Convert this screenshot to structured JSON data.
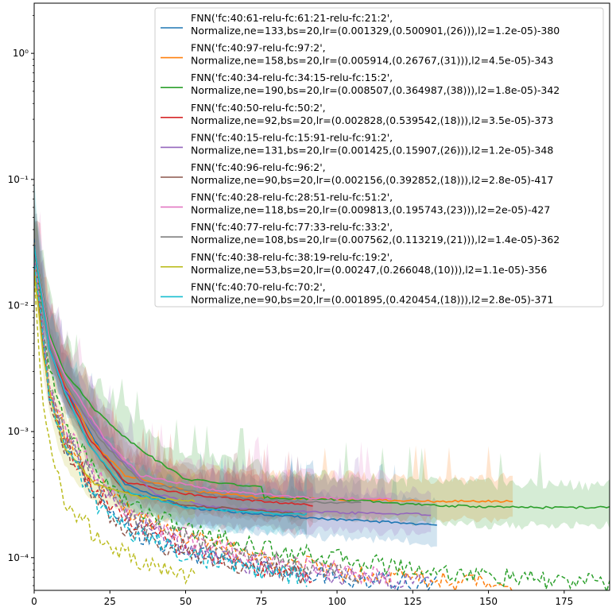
{
  "chart_data": {
    "type": "line",
    "title": "",
    "xlabel": "",
    "ylabel": "",
    "xlim": [
      0,
      190
    ],
    "ylim": [
      5.5e-05,
      2.5
    ],
    "yscale": "log",
    "grid": false,
    "legend_position": "top-right",
    "x_ticks": [
      0,
      25,
      50,
      75,
      100,
      125,
      150,
      175
    ],
    "y_ticks": [
      0.0001,
      0.001,
      0.01,
      0.1,
      1
    ],
    "x_tick_labels": [
      "0",
      "25",
      "50",
      "75",
      "100",
      "125",
      "150",
      "175"
    ],
    "y_tick_labels": [
      "10⁻⁴",
      "10⁻³",
      "10⁻²",
      "10⁻¹",
      "10⁰"
    ],
    "series": [
      {
        "name_line1": "FNN('fc:40:61-relu-fc:61:21-relu-fc:21:2',",
        "name_line2": "Normalize,ne=133,bs=20,lr=(0.001329,(0.500901,(26))),l2=1.2e-05)-380",
        "color": "#1f77b4",
        "epochs": 133,
        "validation": [
          [
            0,
            0.03
          ],
          [
            5,
            0.0045
          ],
          [
            10,
            0.0022
          ],
          [
            20,
            0.00085
          ],
          [
            30,
            0.00038
          ],
          [
            50,
            0.00025
          ],
          [
            75,
            0.00022
          ],
          [
            100,
            0.0002
          ],
          [
            120,
            0.00019
          ],
          [
            133,
            0.00018
          ]
        ],
        "train": [
          [
            0,
            0.03
          ],
          [
            5,
            0.002
          ],
          [
            10,
            0.0008
          ],
          [
            20,
            0.0003
          ],
          [
            30,
            0.00017
          ],
          [
            50,
            0.00011
          ],
          [
            75,
            8.5e-05
          ],
          [
            100,
            7e-05
          ],
          [
            133,
            6.2e-05
          ]
        ]
      },
      {
        "name_line1": "FNN('fc:40:97-relu-fc:97:2',",
        "name_line2": "Normalize,ne=158,bs=20,lr=(0.005914,(0.26767,(31))),l2=4.5e-05)-343",
        "color": "#ff7f0e",
        "epochs": 158,
        "validation": [
          [
            0,
            0.025
          ],
          [
            5,
            0.005
          ],
          [
            10,
            0.0025
          ],
          [
            20,
            0.0008
          ],
          [
            30,
            0.00045
          ],
          [
            50,
            0.00034
          ],
          [
            75,
            0.0003
          ],
          [
            100,
            0.00029
          ],
          [
            130,
            0.00028
          ],
          [
            158,
            0.00028
          ]
        ],
        "train": [
          [
            0,
            0.02
          ],
          [
            5,
            0.0025
          ],
          [
            10,
            0.001
          ],
          [
            20,
            0.0004
          ],
          [
            30,
            0.00025
          ],
          [
            50,
            0.00015
          ],
          [
            75,
            0.0001
          ],
          [
            100,
            8e-05
          ],
          [
            130,
            6.8e-05
          ],
          [
            158,
            6.2e-05
          ]
        ]
      },
      {
        "name_line1": "FNN('fc:40:34-relu-fc:34:15-relu-fc:15:2',",
        "name_line2": "Normalize,ne=190,bs=20,lr=(0.008507,(0.364987,(38))),l2=1.8e-05)-342",
        "color": "#2ca02c",
        "epochs": 190,
        "validation": [
          [
            0,
            0.03
          ],
          [
            5,
            0.006
          ],
          [
            10,
            0.003
          ],
          [
            20,
            0.0015
          ],
          [
            30,
            0.0009
          ],
          [
            40,
            0.0006
          ],
          [
            50,
            0.00042
          ],
          [
            75,
            0.00036
          ],
          [
            76,
            0.0003
          ],
          [
            100,
            0.00029
          ],
          [
            130,
            0.00026
          ],
          [
            160,
            0.00025
          ],
          [
            190,
            0.00025
          ]
        ],
        "train": [
          [
            0,
            0.025
          ],
          [
            5,
            0.003
          ],
          [
            10,
            0.0012
          ],
          [
            20,
            0.0005
          ],
          [
            30,
            0.00028
          ],
          [
            50,
            0.00017
          ],
          [
            75,
            0.00012
          ],
          [
            100,
            0.0001
          ],
          [
            130,
            8e-05
          ],
          [
            160,
            6.8e-05
          ],
          [
            190,
            6.3e-05
          ]
        ]
      },
      {
        "name_line1": "FNN('fc:40:50-relu-fc:50:2',",
        "name_line2": "Normalize,ne=92,bs=20,lr=(0.002828,(0.539542,(18))),l2=3.5e-05)-373",
        "color": "#d62728",
        "epochs": 92,
        "validation": [
          [
            0,
            0.028
          ],
          [
            5,
            0.005
          ],
          [
            10,
            0.0023
          ],
          [
            18,
            0.0009
          ],
          [
            30,
            0.0004
          ],
          [
            50,
            0.00032
          ],
          [
            75,
            0.00028
          ],
          [
            92,
            0.00026
          ]
        ],
        "train": [
          [
            0,
            0.02
          ],
          [
            5,
            0.0022
          ],
          [
            10,
            0.0009
          ],
          [
            18,
            0.0004
          ],
          [
            30,
            0.0002
          ],
          [
            50,
            0.00012
          ],
          [
            75,
            8.5e-05
          ],
          [
            92,
            7.2e-05
          ]
        ]
      },
      {
        "name_line1": "FNN('fc:40:15-relu-fc:15:91-relu-fc:91:2',",
        "name_line2": "Normalize,ne=131,bs=20,lr=(0.001425,(0.15907,(26))),l2=1.2e-05)-348",
        "color": "#9467bd",
        "epochs": 131,
        "validation": [
          [
            0,
            0.03
          ],
          [
            5,
            0.0048
          ],
          [
            10,
            0.0022
          ],
          [
            26,
            0.0007
          ],
          [
            40,
            0.00032
          ],
          [
            60,
            0.00025
          ],
          [
            90,
            0.00023
          ],
          [
            131,
            0.00022
          ]
        ],
        "train": [
          [
            0,
            0.025
          ],
          [
            5,
            0.0021
          ],
          [
            10,
            0.0009
          ],
          [
            26,
            0.00028
          ],
          [
            40,
            0.00016
          ],
          [
            60,
            0.0001
          ],
          [
            90,
            7.5e-05
          ],
          [
            131,
            6.3e-05
          ]
        ]
      },
      {
        "name_line1": "FNN('fc:40:96-relu-fc:96:2',",
        "name_line2": "Normalize,ne=90,bs=20,lr=(0.002156,(0.392852,(18))),l2=2.8e-05)-417",
        "color": "#8c564b",
        "epochs": 90,
        "validation": [
          [
            0,
            0.028
          ],
          [
            5,
            0.0046
          ],
          [
            10,
            0.002
          ],
          [
            18,
            0.0008
          ],
          [
            30,
            0.00033
          ],
          [
            50,
            0.00026
          ],
          [
            70,
            0.00024
          ],
          [
            90,
            0.00022
          ]
        ],
        "train": [
          [
            0,
            0.02
          ],
          [
            5,
            0.002
          ],
          [
            10,
            0.0008
          ],
          [
            18,
            0.00033
          ],
          [
            30,
            0.00017
          ],
          [
            50,
            0.00011
          ],
          [
            70,
            8.5e-05
          ],
          [
            90,
            7.2e-05
          ]
        ]
      },
      {
        "name_line1": "FNN('fc:40:28-relu-fc:28:51-relu-fc:51:2',",
        "name_line2": "Normalize,ne=118,bs=20,lr=(0.009813,(0.195743,(23))),l2=2e-05)-427",
        "color": "#e377c2",
        "epochs": 118,
        "validation": [
          [
            0,
            0.03
          ],
          [
            5,
            0.0055
          ],
          [
            10,
            0.0028
          ],
          [
            23,
            0.0009
          ],
          [
            35,
            0.00045
          ],
          [
            60,
            0.00034
          ],
          [
            90,
            0.0003
          ],
          [
            118,
            0.00029
          ]
        ],
        "train": [
          [
            0,
            0.025
          ],
          [
            5,
            0.0026
          ],
          [
            10,
            0.0011
          ],
          [
            23,
            0.00038
          ],
          [
            35,
            0.0002
          ],
          [
            60,
            0.00012
          ],
          [
            90,
            8.5e-05
          ],
          [
            118,
            7e-05
          ]
        ]
      },
      {
        "name_line1": "FNN('fc:40:77-relu-fc:77:33-relu-fc:33:2',",
        "name_line2": "Normalize,ne=108,bs=20,lr=(0.007562,(0.113219,(21))),l2=1.4e-05)-362",
        "color": "#7f7f7f",
        "epochs": 108,
        "validation": [
          [
            0,
            0.03
          ],
          [
            5,
            0.005
          ],
          [
            10,
            0.0025
          ],
          [
            21,
            0.0009
          ],
          [
            35,
            0.0004
          ],
          [
            60,
            0.00031
          ],
          [
            85,
            0.00028
          ],
          [
            108,
            0.00027
          ]
        ],
        "train": [
          [
            0,
            0.022
          ],
          [
            5,
            0.0024
          ],
          [
            10,
            0.001
          ],
          [
            21,
            0.00035
          ],
          [
            35,
            0.00019
          ],
          [
            60,
            0.00012
          ],
          [
            85,
            8.8e-05
          ],
          [
            108,
            7.5e-05
          ]
        ]
      },
      {
        "name_line1": "FNN('fc:40:38-relu-fc:38:19-relu-fc:19:2',",
        "name_line2": "Normalize,ne=53,bs=20,lr=(0.00247,(0.266048,(10))),l2=1.1e-05)-356",
        "color": "#bcbd22",
        "epochs": 53,
        "validation": [
          [
            0,
            0.02
          ],
          [
            3,
            0.004
          ],
          [
            6,
            0.0016
          ],
          [
            10,
            0.00075
          ],
          [
            20,
            0.00038
          ],
          [
            35,
            0.0003
          ],
          [
            53,
            0.00028
          ]
        ],
        "train": [
          [
            0,
            0.015
          ],
          [
            3,
            0.0015
          ],
          [
            6,
            0.0006
          ],
          [
            10,
            0.0003
          ],
          [
            20,
            0.00015
          ],
          [
            35,
            9e-05
          ],
          [
            53,
            7e-05
          ]
        ]
      },
      {
        "name_line1": "FNN('fc:40:70-relu-fc:70:2',",
        "name_line2": "Normalize,ne=90,bs=20,lr=(0.001895,(0.420454,(18))),l2=2.8e-05)-371",
        "color": "#17becf",
        "epochs": 90,
        "validation": [
          [
            0,
            0.03
          ],
          [
            5,
            0.0046
          ],
          [
            10,
            0.0021
          ],
          [
            18,
            0.0008
          ],
          [
            30,
            0.00034
          ],
          [
            50,
            0.00025
          ],
          [
            70,
            0.00023
          ],
          [
            90,
            0.00022
          ]
        ],
        "train": [
          [
            0,
            0.022
          ],
          [
            5,
            0.002
          ],
          [
            10,
            0.0008
          ],
          [
            18,
            0.00032
          ],
          [
            30,
            0.00017
          ],
          [
            50,
            0.00011
          ],
          [
            70,
            8.2e-05
          ],
          [
            90,
            7e-05
          ]
        ]
      }
    ]
  }
}
